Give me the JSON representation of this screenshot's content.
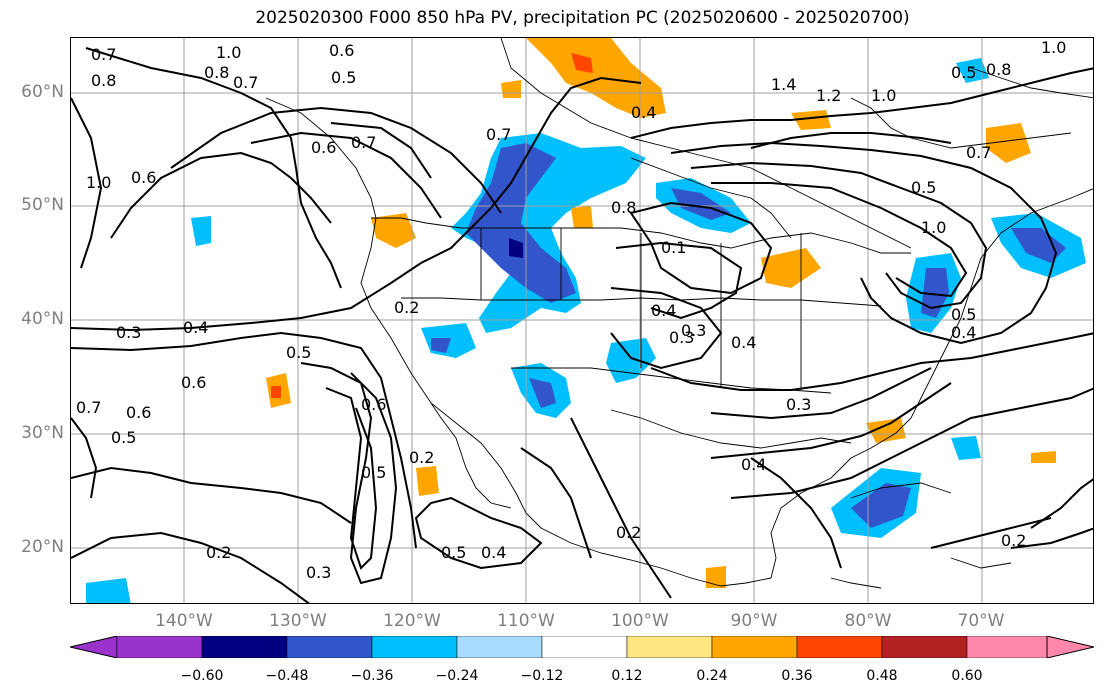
{
  "title": "2025020300 F000 850 hPa PV, precipitation PC (2025020600 - 2025020700)",
  "lat_labels": [
    "60°N",
    "50°N",
    "40°N",
    "30°N",
    "20°N"
  ],
  "lon_labels": [
    "140°W",
    "130°W",
    "120°W",
    "110°W",
    "100°W",
    "90°W",
    "80°W",
    "70°W"
  ],
  "colorbar": {
    "ticks": [
      "−0.60",
      "−0.48",
      "−0.36",
      "−0.24",
      "−0.12",
      "0.12",
      "0.24",
      "0.36",
      "0.48",
      "0.60"
    ],
    "colors": [
      "#9933cc",
      "#000080",
      "#3355cc",
      "#00bfff",
      "#a8dcff",
      "#ffffff",
      "#ffe680",
      "#ffa500",
      "#ff4500",
      "#b22222",
      "#ff88aa"
    ]
  },
  "contour_labels": {
    "a": "0.7",
    "b": "1.0",
    "c": "0.8",
    "d": "0.6",
    "e": "0.7",
    "f": "0.8",
    "g": "1.0",
    "h": "0.6",
    "i": "0.7",
    "j": "0.5",
    "k": "0.8",
    "l": "1.4",
    "m": "1.2",
    "n": "1.0",
    "o": "0.7",
    "p": "0.5",
    "q": "1.0",
    "r": "0.8",
    "s": "0.7",
    "t": "0.3",
    "u": "0.4",
    "v": "0.5",
    "w": "0.6",
    "x": "0.3",
    "y": "0.4",
    "z": "0.2",
    "aa": "0.5",
    "ab": "0.5",
    "ac": "0.6",
    "ad": "0.7",
    "ae": "0.6",
    "af": "0.5",
    "ag": "0.2",
    "ah": "0.2",
    "ai": "0.3",
    "aj": "0.5",
    "ak": "0.4",
    "al": "0.2",
    "am": "0.3",
    "an": "0.4",
    "ao": "0.2",
    "ap": "0.5",
    "aq": "0.4",
    "ar": "0.6",
    "as": "0.4",
    "at": "0.3",
    "au": "1.0",
    "av": "0.1",
    "aw": "0.4"
  }
}
